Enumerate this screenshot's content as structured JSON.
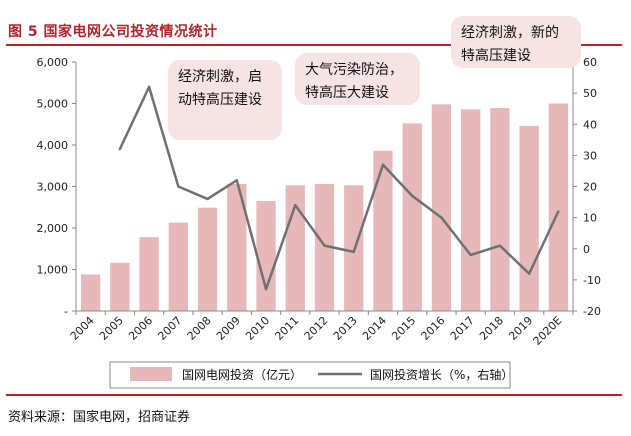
{
  "title": "图 5  国家电网公司投资情况统计",
  "source": "资料来源：国家电网，招商证券",
  "callouts": [
    {
      "text": "经济刺激，启动特高压建设"
    },
    {
      "text": "大气污染防治，特高压大建设"
    },
    {
      "text": "经济刺激，新的特高压建设"
    }
  ],
  "colors": {
    "bar": "#e7b8b9",
    "line": "#6e7072",
    "accent": "#b2242a",
    "callout": "#f6e4e4"
  },
  "chart_data": {
    "type": "bar+line",
    "categories": [
      "2004",
      "2005",
      "2006",
      "2007",
      "2008",
      "2009",
      "2010",
      "2011",
      "2012",
      "2013",
      "2014",
      "2015",
      "2016",
      "2017",
      "2018",
      "2019",
      "2020E"
    ],
    "series": [
      {
        "name": "国网电网投资（亿元）",
        "type": "bar",
        "axis": "left",
        "values": [
          880,
          1160,
          1780,
          2130,
          2490,
          3060,
          2650,
          3030,
          3060,
          3030,
          3860,
          4520,
          4980,
          4860,
          4890,
          4460,
          5000
        ]
      },
      {
        "name": "国网投资增长（%，右轴）",
        "type": "line",
        "axis": "right",
        "values": [
          null,
          32,
          52,
          20,
          16,
          22,
          -13,
          14,
          1,
          -1,
          27,
          17,
          10,
          -2,
          1,
          -8,
          12
        ]
      }
    ],
    "y_left": {
      "min": 0,
      "max": 6000,
      "ticks": [
        0,
        1000,
        2000,
        3000,
        4000,
        5000,
        6000
      ],
      "tick_labels": [
        "-",
        "1,000",
        "2,000",
        "3,000",
        "4,000",
        "5,000",
        "6,000"
      ]
    },
    "y_right": {
      "min": -20,
      "max": 60,
      "ticks": [
        -20,
        -10,
        0,
        10,
        20,
        30,
        40,
        50,
        60
      ],
      "tick_labels": [
        "-20",
        "-10",
        "0",
        "10",
        "20",
        "30",
        "40",
        "50",
        "60"
      ]
    },
    "legend": [
      "国网电网投资（亿元）",
      "国网投资增长（%，右轴）"
    ],
    "legend_position": "bottom"
  }
}
